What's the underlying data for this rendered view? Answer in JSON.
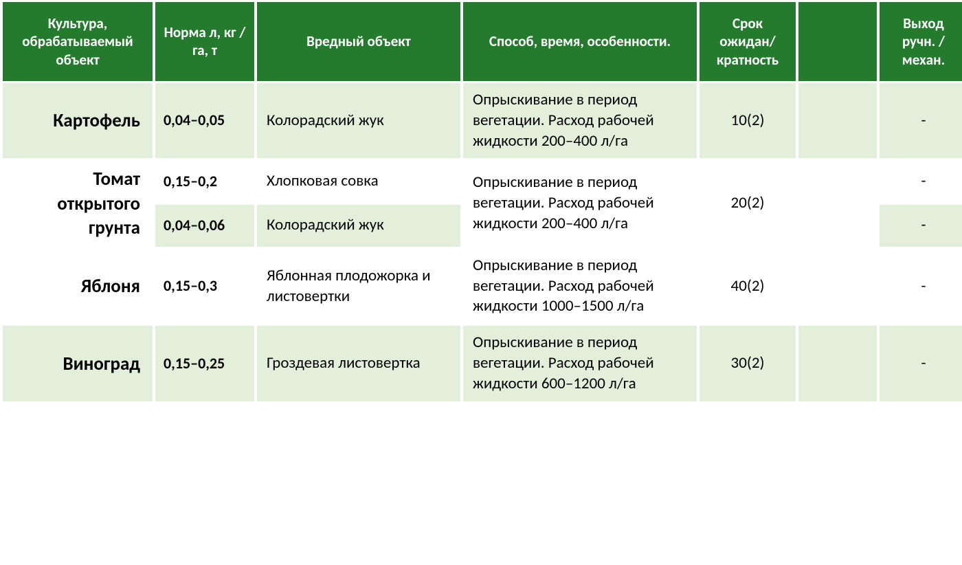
{
  "colors": {
    "header_bg": "#247a2d",
    "header_text": "#ffffff",
    "row_tint": "#e3efdb",
    "row_white": "#ffffff",
    "text": "#000000"
  },
  "columns": [
    "Культура, обрабатываемый объект",
    "Норма л, кг        / га, т",
    "Вредный объект",
    "Способ, время, особенности.",
    "Срок ожидан/ кратность",
    "",
    "Выход ручн. /механ."
  ],
  "rows": [
    {
      "culture": "Картофель",
      "norm": "0,04–0,05",
      "pest": "Колорадский жук",
      "method": "Опрыскивание в период вегетации. Расход рабочей жидкости 200–400 л/га",
      "wait": "10(2)",
      "blank": "",
      "exit": "-",
      "tint": true,
      "rowspan_culture": 1
    },
    {
      "culture": "Томат открытого грунта",
      "norm": "0,15–0,2",
      "pest": "Хлопковая совка",
      "method": "Опрыскивание в период вегетации. Расход рабочей жидкости 200–400 л/га",
      "wait": "20(2)",
      "blank": "",
      "exit": "-",
      "tint": false
    },
    {
      "norm2": "0,04–0,06",
      "pest2": "Колорадский жук",
      "exit2": "-",
      "tint": true
    },
    {
      "culture": "Яблоня",
      "norm": "0,15–0,3",
      "pest": "Яблонная плодожорка и листовертки",
      "method": "Опрыскивание в период вегетации. Расход рабочей жидкости 1000–1500 л/га",
      "wait": "40(2)",
      "blank": "",
      "exit": "-",
      "tint": false
    },
    {
      "culture": "Виноград",
      "norm": "0,15–0,25",
      "pest": "Гроздевая листовертка",
      "method": "Опрыскивание в период вегетации. Расход рабочей жидкости 600–1200 л/га",
      "wait": "30(2)",
      "blank": "",
      "exit": "-",
      "tint": true
    }
  ]
}
